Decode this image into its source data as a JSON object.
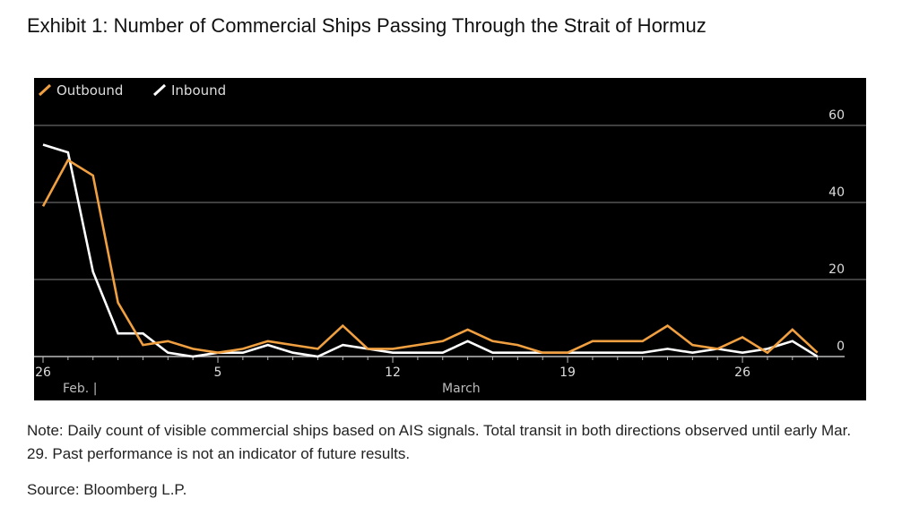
{
  "title": "Exhibit 1: Number of Commercial Ships Passing Through the Strait of Hormuz",
  "note": "Note: Daily count of visible commercial ships based on AIS signals. Total transit in both directions observed until early Mar. 29. Past performance is not an indicator of future results.",
  "source": "Source: Bloomberg L.P.",
  "chart_data": {
    "type": "line",
    "title": "",
    "x": [
      "Feb 26",
      "Feb 27",
      "Feb 28",
      "Mar 1",
      "Mar 2",
      "Mar 3",
      "Mar 4",
      "Mar 5",
      "Mar 6",
      "Mar 7",
      "Mar 8",
      "Mar 9",
      "Mar 10",
      "Mar 11",
      "Mar 12",
      "Mar 13",
      "Mar 14",
      "Mar 15",
      "Mar 16",
      "Mar 17",
      "Mar 18",
      "Mar 19",
      "Mar 20",
      "Mar 21",
      "Mar 22",
      "Mar 23",
      "Mar 24",
      "Mar 25",
      "Mar 26",
      "Mar 27",
      "Mar 28",
      "Mar 29"
    ],
    "series": [
      {
        "name": "Outbound",
        "color": "#f0a040",
        "values": [
          39,
          51,
          47,
          14,
          3,
          4,
          2,
          1,
          2,
          4,
          3,
          2,
          8,
          2,
          2,
          3,
          4,
          7,
          4,
          3,
          1,
          1,
          4,
          4,
          4,
          8,
          3,
          2,
          5,
          1,
          7,
          1
        ]
      },
      {
        "name": "Inbound",
        "color": "#ffffff",
        "values": [
          55,
          53,
          22,
          6,
          6,
          1,
          0,
          1,
          1,
          3,
          1,
          0,
          3,
          2,
          1,
          1,
          1,
          4,
          1,
          1,
          1,
          1,
          1,
          1,
          1,
          2,
          1,
          2,
          1,
          2,
          4,
          0
        ]
      }
    ],
    "x_tick_labels": [
      {
        "index": 0,
        "label": "26"
      },
      {
        "index": 7,
        "label": "5"
      },
      {
        "index": 14,
        "label": "12"
      },
      {
        "index": 21,
        "label": "19"
      },
      {
        "index": 28,
        "label": "26"
      }
    ],
    "month_labels": [
      "Feb.",
      "March"
    ],
    "y_ticks": [
      0,
      20,
      40,
      60
    ],
    "ylim": [
      0,
      60
    ],
    "grid": true,
    "legend": "top-left",
    "background": "#000000"
  }
}
